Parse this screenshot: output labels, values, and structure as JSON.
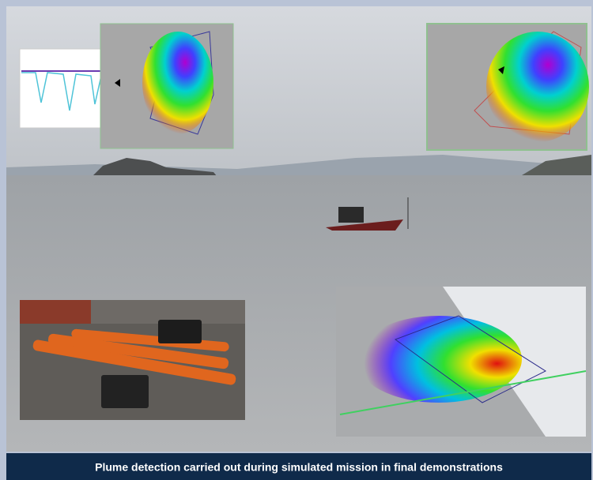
{
  "caption": "Plume detection carried out during simulated mission in final demonstrations"
}
